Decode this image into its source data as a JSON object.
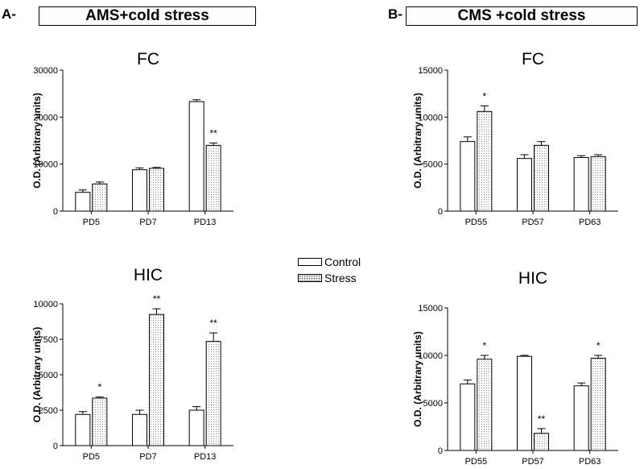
{
  "panels": {
    "a": {
      "letter": "A-",
      "title": "AMS+cold stress"
    },
    "b": {
      "letter": "B-",
      "title": "CMS +cold stress"
    }
  },
  "legend": {
    "control": "Control",
    "stress": "Stress"
  },
  "colors": {
    "control": "#ffffff",
    "stress": "#d8d8d8",
    "axis": "#000000"
  },
  "chart_data": [
    {
      "type": "bar",
      "panel": "A",
      "title": "FC",
      "ylabel": "O.D. (Arbitrary units)",
      "categories": [
        "PD5",
        "PD7",
        "PD13"
      ],
      "ylim": [
        0,
        30000
      ],
      "yticks": [
        0,
        10000,
        20000,
        30000
      ],
      "series": [
        {
          "name": "Control",
          "values": [
            4000,
            8800,
            23300
          ],
          "errors": [
            500,
            400,
            400
          ]
        },
        {
          "name": "Stress",
          "values": [
            5800,
            9100,
            14000
          ],
          "errors": [
            400,
            200,
            500
          ]
        }
      ],
      "annotations": [
        "",
        "",
        "**"
      ]
    },
    {
      "type": "bar",
      "panel": "A",
      "title": "HIC",
      "ylabel": "O.D. (Arbitrary units)",
      "categories": [
        "PD5",
        "PD7",
        "PD13"
      ],
      "ylim": [
        0,
        10000
      ],
      "yticks": [
        0,
        2500,
        5000,
        7500,
        10000
      ],
      "series": [
        {
          "name": "Control",
          "values": [
            2200,
            2200,
            2500
          ],
          "errors": [
            200,
            300,
            250
          ]
        },
        {
          "name": "Stress",
          "values": [
            3350,
            9250,
            7350
          ],
          "errors": [
            80,
            400,
            600
          ]
        }
      ],
      "annotations": [
        "*",
        "**",
        "**"
      ]
    },
    {
      "type": "bar",
      "panel": "B",
      "title": "FC",
      "ylabel": "O.D. (Arbitrary units)",
      "categories": [
        "PD55",
        "PD57",
        "PD63"
      ],
      "ylim": [
        0,
        15000
      ],
      "yticks": [
        0,
        5000,
        10000,
        15000
      ],
      "series": [
        {
          "name": "Control",
          "values": [
            7400,
            5600,
            5700
          ],
          "errors": [
            500,
            400,
            200
          ]
        },
        {
          "name": "Stress",
          "values": [
            10600,
            7000,
            5800
          ],
          "errors": [
            600,
            400,
            200
          ]
        }
      ],
      "annotations": [
        "*",
        "",
        ""
      ]
    },
    {
      "type": "bar",
      "panel": "B",
      "title": "HIC",
      "ylabel": "O.D. (Arbitrary units)",
      "categories": [
        "PD55",
        "PD57",
        "PD63"
      ],
      "ylim": [
        0,
        15000
      ],
      "yticks": [
        0,
        5000,
        10000,
        15000
      ],
      "series": [
        {
          "name": "Control",
          "values": [
            7000,
            9900,
            6800
          ],
          "errors": [
            400,
            100,
            300
          ]
        },
        {
          "name": "Stress",
          "values": [
            9600,
            1800,
            9700
          ],
          "errors": [
            400,
            500,
            300
          ]
        }
      ],
      "annotations": [
        "*",
        "**",
        "*"
      ]
    }
  ]
}
